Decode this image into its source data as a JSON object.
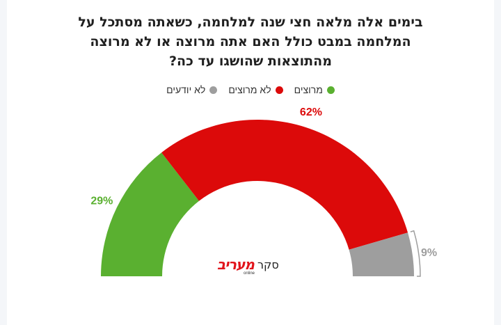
{
  "chart_data": {
    "type": "pie",
    "title": "בימים אלה מלאה חצי שנה למלחמה, כשאתה מסתכל על המלחמה במבט כולל האם אתה מרוצה או לא מרוצה מהתוצאות שהושגו עד כה?",
    "series": [
      {
        "name": "מרוצים",
        "value": 29,
        "label": "29%",
        "color": "#5ab030"
      },
      {
        "name": "לא מרוצים",
        "value": 62,
        "label": "62%",
        "color": "#dc0a0a"
      },
      {
        "name": "לא יודעים",
        "value": 9,
        "label": "9%",
        "color": "#9e9e9e"
      }
    ],
    "legend_placement": "top-center"
  },
  "logo": {
    "brand": "מעריב",
    "sub": "סקר",
    "tag": "online"
  }
}
